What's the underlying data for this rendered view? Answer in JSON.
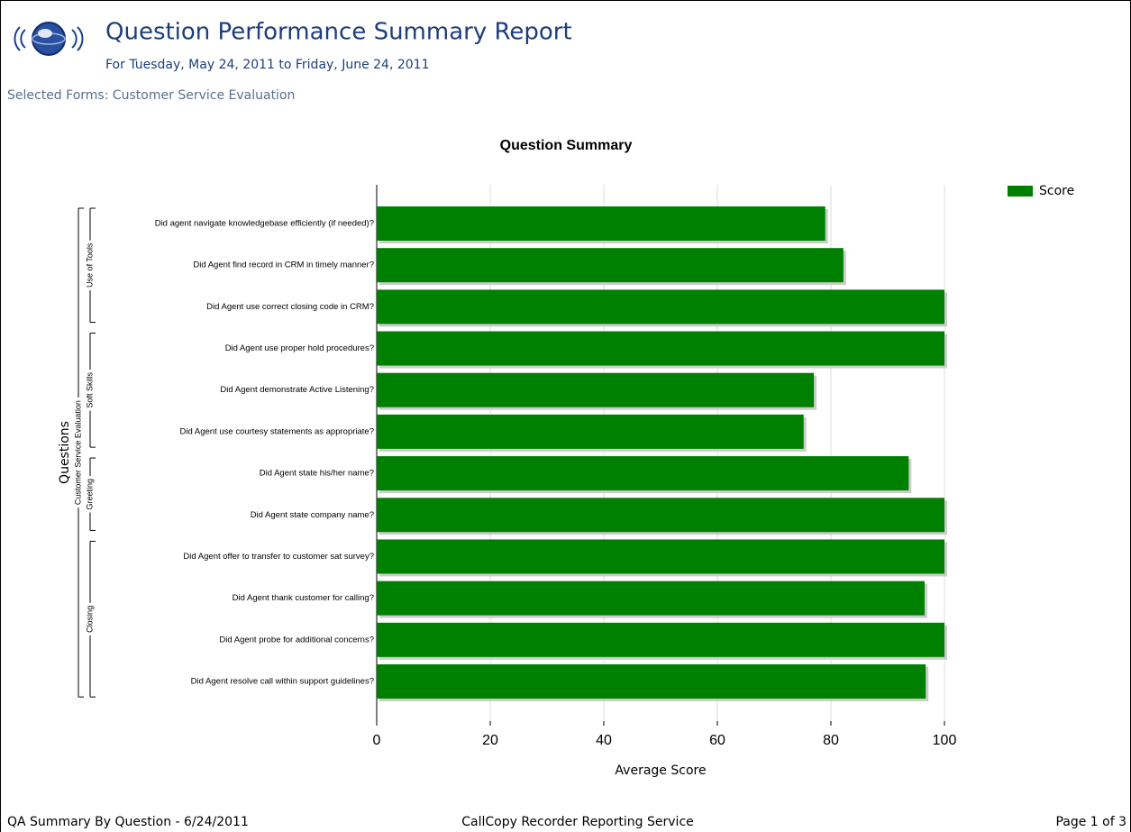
{
  "header": {
    "title": "Question Performance Summary Report",
    "subtitle": "For Tuesday, May 24, 2011 to Friday, June 24, 2011",
    "selected_forms": "Selected Forms: Customer Service Evaluation"
  },
  "chart_data": {
    "type": "bar",
    "orientation": "horizontal",
    "title": "Question Summary",
    "categories": [
      "Did agent navigate knowledgebase efficiently (if needed)?",
      "Did Agent find record in CRM in timely manner?",
      "Did Agent use correct closing code in CRM?",
      "Did Agent use proper hold procedures?",
      "Did Agent demonstrate Active Listening?",
      "Did Agent use courtesy statements as appropriate?",
      "Did Agent state his/her name?",
      "Did Agent state company name?",
      "Did Agent offer to transfer to customer sat survey?",
      "Did Agent thank customer for calling?",
      "Did Agent probe for additional concerns?",
      "Did Agent resolve call within support guidelines?"
    ],
    "series": [
      {
        "name": "Score",
        "color": "#008000",
        "values": [
          79,
          82.2,
          100,
          100,
          77,
          75.2,
          93.7,
          100,
          100,
          96.5,
          100,
          96.7
        ]
      }
    ],
    "xlabel": "Average Score",
    "ylabel": "Questions",
    "group": "Customer Service Evaluation",
    "subgroups": [
      {
        "name": "Use of Tools",
        "count": 3
      },
      {
        "name": "Soft Skills",
        "count": 3
      },
      {
        "name": "Greeting",
        "count": 2
      },
      {
        "name": "Closing",
        "count": 4
      }
    ],
    "xlim": [
      0,
      100
    ],
    "xticks": [
      0,
      20,
      40,
      60,
      80,
      100
    ],
    "grid": true,
    "legend": "upper right"
  },
  "footer": {
    "left": "QA Summary By Question - 6/24/2011",
    "center": "CallCopy Recorder Reporting Service",
    "right": "Page 1 of 3"
  }
}
